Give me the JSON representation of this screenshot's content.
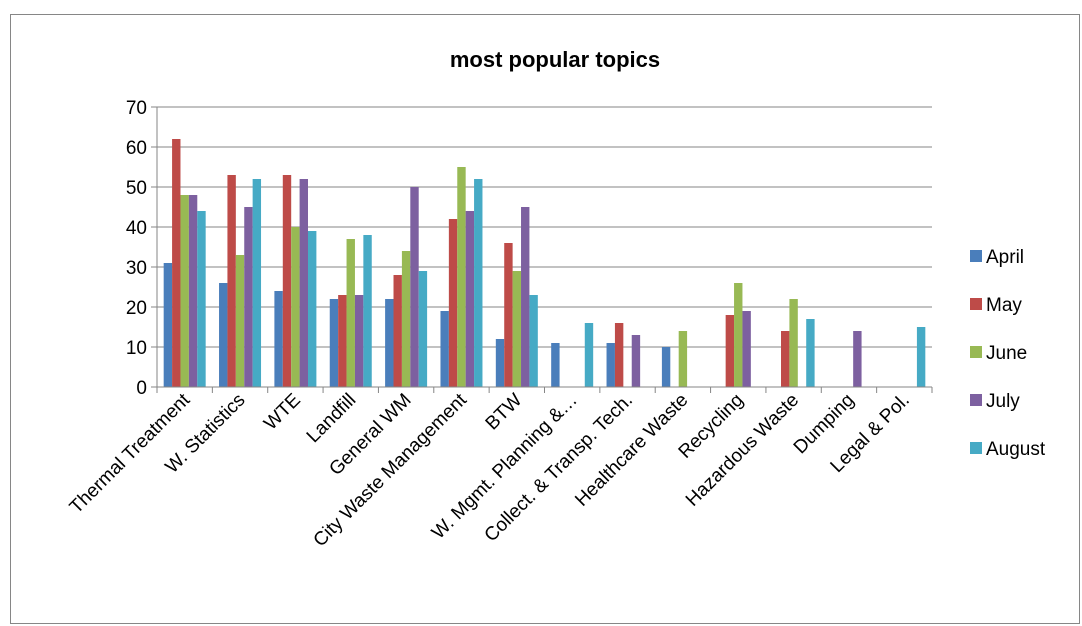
{
  "chart_data": {
    "type": "bar",
    "title": "most popular topics",
    "xlabel": "",
    "ylabel": "",
    "ylim": [
      0,
      70
    ],
    "yticks": [
      "0",
      "10",
      "20",
      "30",
      "40",
      "50",
      "60",
      "70"
    ],
    "grid": true,
    "legend_position": "right",
    "categories": [
      "Thermal Treatment",
      "W. Statistics",
      "WTE",
      "Landfill",
      "General WM",
      "City Waste Management",
      "BTW",
      "W. Mgmt. Planning &…",
      "Collect. & Transp. Tech.",
      "Healthcare Waste",
      "Recycling",
      "Hazardous Waste",
      "Dumping",
      "Legal & Pol."
    ],
    "series": [
      {
        "name": "April",
        "color": "#4A7EBB",
        "values": [
          31,
          26,
          24,
          22,
          22,
          19,
          12,
          11,
          11,
          10,
          null,
          null,
          null,
          null
        ]
      },
      {
        "name": "May",
        "color": "#BE4B48",
        "values": [
          62,
          53,
          53,
          23,
          28,
          42,
          36,
          null,
          16,
          null,
          18,
          14,
          null,
          null
        ]
      },
      {
        "name": "June",
        "color": "#98B954",
        "values": [
          48,
          33,
          40,
          37,
          34,
          55,
          29,
          null,
          null,
          14,
          26,
          22,
          null,
          null
        ]
      },
      {
        "name": "July",
        "color": "#7D60A0",
        "values": [
          48,
          45,
          52,
          23,
          50,
          44,
          45,
          null,
          13,
          null,
          19,
          null,
          14,
          null
        ]
      },
      {
        "name": "August",
        "color": "#46AAC5",
        "values": [
          44,
          52,
          39,
          38,
          29,
          52,
          23,
          16,
          null,
          null,
          null,
          17,
          null,
          15
        ]
      }
    ]
  }
}
